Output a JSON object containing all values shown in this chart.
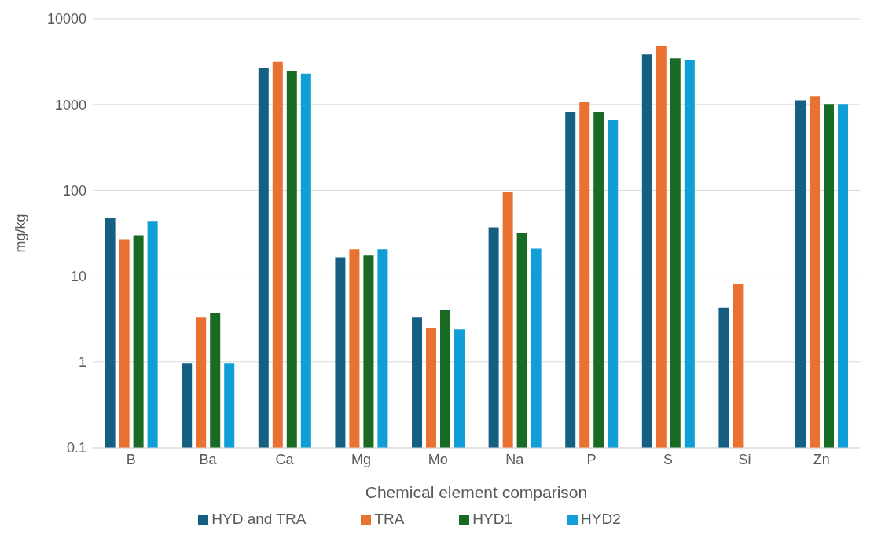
{
  "chart_data": {
    "type": "bar",
    "xlabel": "Chemical element comparison",
    "ylabel": "mg/kg",
    "categories": [
      "B",
      "Ba",
      "Ca",
      "Mg",
      "Mo",
      "Na",
      "P",
      "S",
      "Si",
      "Zn"
    ],
    "series": [
      {
        "name": "HYD and TRA",
        "color": "#156082",
        "values": [
          48,
          0.97,
          2700,
          16.6,
          3.3,
          37,
          820,
          3850,
          4.3,
          1130
        ]
      },
      {
        "name": "TRA",
        "color": "#e97132",
        "values": [
          27,
          3.3,
          3150,
          20.6,
          2.5,
          96,
          1070,
          4780,
          8.1,
          1260
        ]
      },
      {
        "name": "HYD1",
        "color": "#196b24",
        "values": [
          30,
          3.7,
          2430,
          17.4,
          4.0,
          32,
          820,
          3470,
          null,
          1000
        ]
      },
      {
        "name": "HYD2",
        "color": "#0f9ed5",
        "values": [
          44,
          0.97,
          2300,
          20.6,
          2.4,
          21,
          660,
          3270,
          null,
          1000
        ]
      }
    ],
    "log": true,
    "ylim": [
      0.1,
      10000
    ],
    "yticks": [
      0.1,
      1,
      10,
      100,
      1000,
      10000
    ],
    "grid": "y",
    "legend": "bottom"
  }
}
